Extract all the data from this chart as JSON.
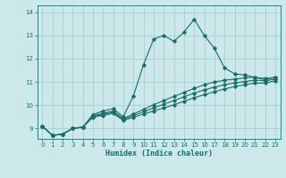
{
  "title": "",
  "xlabel": "Humidex (Indice chaleur)",
  "bg_color": "#cce8ea",
  "line_color": "#1a6e6a",
  "grid_color": "#aacfd2",
  "xlim": [
    -0.5,
    23.5
  ],
  "ylim": [
    8.55,
    14.3
  ],
  "xticks": [
    0,
    1,
    2,
    3,
    4,
    5,
    6,
    7,
    8,
    9,
    10,
    11,
    12,
    13,
    14,
    15,
    16,
    17,
    18,
    19,
    20,
    21,
    22,
    23
  ],
  "yticks": [
    9,
    10,
    11,
    12,
    13,
    14
  ],
  "line1_x": [
    0,
    1,
    2,
    3,
    4,
    5,
    6,
    7,
    8,
    9,
    10,
    11,
    12,
    13,
    14,
    15,
    16,
    17,
    18,
    19,
    20,
    21,
    22,
    23
  ],
  "line1_y": [
    9.1,
    8.7,
    8.75,
    9.0,
    9.05,
    9.6,
    9.75,
    9.85,
    9.5,
    10.4,
    11.75,
    12.85,
    13.0,
    12.75,
    13.15,
    13.7,
    13.0,
    12.45,
    11.6,
    11.35,
    11.3,
    11.2,
    11.1,
    11.2
  ],
  "line2_x": [
    0,
    1,
    2,
    3,
    4,
    5,
    6,
    7,
    8,
    9,
    10,
    11,
    12,
    13,
    14,
    15,
    16,
    17,
    18,
    19,
    20,
    21,
    22,
    23
  ],
  "line2_y": [
    9.1,
    8.7,
    8.75,
    9.0,
    9.05,
    9.55,
    9.65,
    9.75,
    9.42,
    9.62,
    9.82,
    10.02,
    10.2,
    10.38,
    10.55,
    10.72,
    10.88,
    11.0,
    11.08,
    11.12,
    11.18,
    11.2,
    11.15,
    11.2
  ],
  "line3_x": [
    0,
    1,
    2,
    3,
    4,
    5,
    6,
    7,
    8,
    9,
    10,
    11,
    12,
    13,
    14,
    15,
    16,
    17,
    18,
    19,
    20,
    21,
    22,
    23
  ],
  "line3_y": [
    9.1,
    8.7,
    8.75,
    9.0,
    9.05,
    9.52,
    9.6,
    9.7,
    9.38,
    9.55,
    9.72,
    9.88,
    10.04,
    10.2,
    10.36,
    10.52,
    10.66,
    10.78,
    10.88,
    10.96,
    11.02,
    11.08,
    11.05,
    11.12
  ],
  "line4_x": [
    0,
    1,
    2,
    3,
    4,
    5,
    6,
    7,
    8,
    9,
    10,
    11,
    12,
    13,
    14,
    15,
    16,
    17,
    18,
    19,
    20,
    21,
    22,
    23
  ],
  "line4_y": [
    9.1,
    8.7,
    8.75,
    9.0,
    9.05,
    9.48,
    9.56,
    9.65,
    9.34,
    9.48,
    9.62,
    9.75,
    9.88,
    10.02,
    10.17,
    10.32,
    10.45,
    10.58,
    10.7,
    10.8,
    10.88,
    10.95,
    10.95,
    11.05
  ]
}
